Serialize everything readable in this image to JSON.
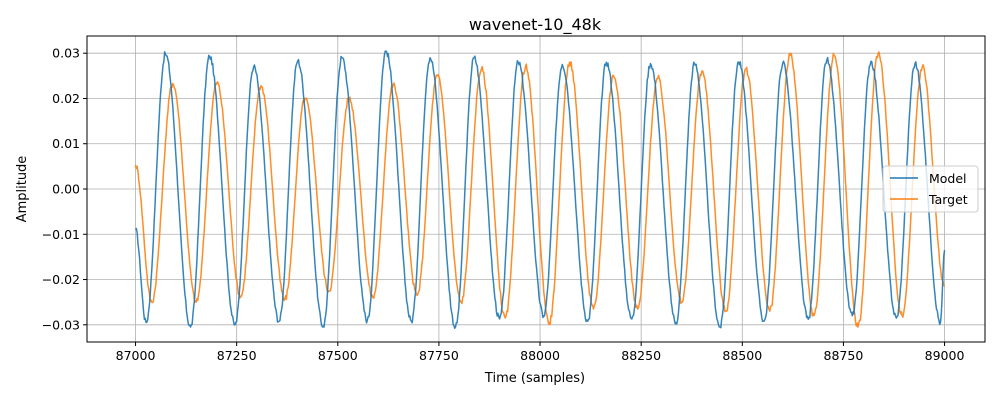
{
  "chart_data": {
    "type": "line",
    "title": "wavenet-10_48k",
    "xlabel": "Time (samples)",
    "ylabel": "Amplitude",
    "xlim": [
      86880,
      89100
    ],
    "ylim": [
      -0.0338,
      0.0338
    ],
    "x_ticks": [
      87000,
      87250,
      87500,
      87750,
      88000,
      88250,
      88500,
      88750,
      89000
    ],
    "x_tick_labels": [
      "87000",
      "87250",
      "87500",
      "87750",
      "88000",
      "88250",
      "88500",
      "88750",
      "89000"
    ],
    "y_ticks": [
      -0.03,
      -0.02,
      -0.01,
      0.0,
      0.01,
      0.02,
      0.03
    ],
    "y_tick_labels": [
      "−0.03",
      "−0.02",
      "−0.01",
      "0.00",
      "0.01",
      "0.02",
      "0.03"
    ],
    "grid": true,
    "legend_position": "center-right",
    "x_range": [
      87000,
      89000
    ],
    "series": [
      {
        "name": "Model",
        "color": "#1f77b4",
        "start_value": -0.009,
        "end_value": -0.0135,
        "peaks": [
          {
            "x": 87074,
            "y": 0.0298
          },
          {
            "x": 87183,
            "y": 0.0293
          },
          {
            "x": 87292,
            "y": 0.027
          },
          {
            "x": 87401,
            "y": 0.0283
          },
          {
            "x": 87510,
            "y": 0.029
          },
          {
            "x": 87619,
            "y": 0.0305
          },
          {
            "x": 87728,
            "y": 0.029
          },
          {
            "x": 87837,
            "y": 0.029
          },
          {
            "x": 87946,
            "y": 0.028
          },
          {
            "x": 88055,
            "y": 0.0275
          },
          {
            "x": 88164,
            "y": 0.028
          },
          {
            "x": 88273,
            "y": 0.0277
          },
          {
            "x": 88382,
            "y": 0.0277
          },
          {
            "x": 88491,
            "y": 0.028
          },
          {
            "x": 88600,
            "y": 0.0278
          },
          {
            "x": 88709,
            "y": 0.0285
          },
          {
            "x": 88818,
            "y": 0.0282
          },
          {
            "x": 88927,
            "y": 0.0277
          }
        ],
        "troughs": [
          {
            "x": 87026,
            "y": -0.0295
          },
          {
            "x": 87136,
            "y": -0.0305
          },
          {
            "x": 87246,
            "y": -0.03
          },
          {
            "x": 87355,
            "y": -0.0292
          },
          {
            "x": 87464,
            "y": -0.0303
          },
          {
            "x": 87573,
            "y": -0.029
          },
          {
            "x": 87682,
            "y": -0.0292
          },
          {
            "x": 87791,
            "y": -0.0305
          },
          {
            "x": 87900,
            "y": -0.0287
          },
          {
            "x": 88009,
            "y": -0.028
          },
          {
            "x": 88118,
            "y": -0.0292
          },
          {
            "x": 88227,
            "y": -0.0287
          },
          {
            "x": 88336,
            "y": -0.0295
          },
          {
            "x": 88445,
            "y": -0.0305
          },
          {
            "x": 88554,
            "y": -0.0292
          },
          {
            "x": 88663,
            "y": -0.0288
          },
          {
            "x": 88772,
            "y": -0.028
          },
          {
            "x": 88881,
            "y": -0.0285
          },
          {
            "x": 88990,
            "y": -0.0295
          }
        ]
      },
      {
        "name": "Target",
        "color": "#ff7f0e",
        "start_value": 0.0053,
        "end_value": -0.0215,
        "peaks": [
          {
            "x": 87092,
            "y": 0.0233
          },
          {
            "x": 87201,
            "y": 0.0235
          },
          {
            "x": 87310,
            "y": 0.0228
          },
          {
            "x": 87419,
            "y": 0.02
          },
          {
            "x": 87528,
            "y": 0.02
          },
          {
            "x": 87637,
            "y": 0.023
          },
          {
            "x": 87746,
            "y": 0.025
          },
          {
            "x": 87855,
            "y": 0.0265
          },
          {
            "x": 87964,
            "y": 0.027
          },
          {
            "x": 88073,
            "y": 0.028
          },
          {
            "x": 88182,
            "y": 0.025
          },
          {
            "x": 88291,
            "y": 0.0245
          },
          {
            "x": 88400,
            "y": 0.026
          },
          {
            "x": 88509,
            "y": 0.0265
          },
          {
            "x": 88618,
            "y": 0.0295
          },
          {
            "x": 88727,
            "y": 0.0295
          },
          {
            "x": 88836,
            "y": 0.03
          },
          {
            "x": 88945,
            "y": 0.027
          }
        ],
        "troughs": [
          {
            "x": 87040,
            "y": -0.025
          },
          {
            "x": 87150,
            "y": -0.025
          },
          {
            "x": 87260,
            "y": -0.0237
          },
          {
            "x": 87369,
            "y": -0.0245
          },
          {
            "x": 87478,
            "y": -0.0225
          },
          {
            "x": 87587,
            "y": -0.024
          },
          {
            "x": 87696,
            "y": -0.0235
          },
          {
            "x": 87805,
            "y": -0.025
          },
          {
            "x": 87914,
            "y": -0.0285
          },
          {
            "x": 88023,
            "y": -0.0295
          },
          {
            "x": 88132,
            "y": -0.0265
          },
          {
            "x": 88241,
            "y": -0.0265
          },
          {
            "x": 88350,
            "y": -0.025
          },
          {
            "x": 88459,
            "y": -0.027
          },
          {
            "x": 88568,
            "y": -0.027
          },
          {
            "x": 88677,
            "y": -0.028
          },
          {
            "x": 88786,
            "y": -0.0305
          },
          {
            "x": 88895,
            "y": -0.028
          },
          {
            "x": 89000,
            "y": -0.0215
          }
        ]
      }
    ]
  }
}
